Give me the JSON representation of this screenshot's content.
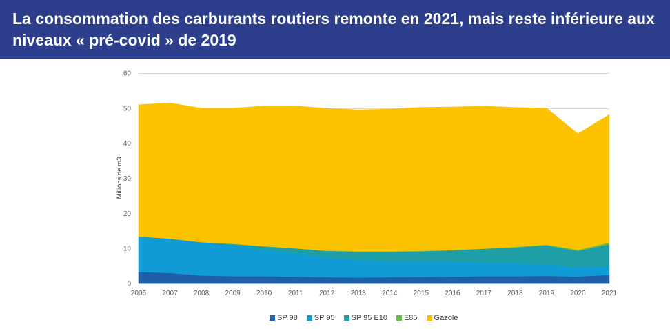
{
  "chart_data": {
    "type": "area",
    "stacked": true,
    "title": "La consommation des carburants routiers remonte en 2021, mais reste inférieure aux niveaux « pré-covid » de 2019",
    "ylabel": "Millions de m3",
    "categories": [
      "2006",
      "2007",
      "2008",
      "2009",
      "2010",
      "2011",
      "2012",
      "2013",
      "2014",
      "2015",
      "2016",
      "2017",
      "2018",
      "2019",
      "2020",
      "2021"
    ],
    "ylim": [
      0,
      60
    ],
    "yticks": [
      0,
      10,
      20,
      30,
      40,
      50,
      60
    ],
    "grid": true,
    "legend_position": "bottom",
    "series": [
      {
        "name": "SP 98",
        "color": "#1f5fa8",
        "values": [
          3.3,
          3.0,
          2.3,
          2.1,
          2.1,
          2.0,
          1.8,
          1.7,
          1.8,
          1.9,
          2.0,
          2.1,
          2.1,
          2.2,
          2.0,
          2.5
        ]
      },
      {
        "name": "SP 95",
        "color": "#109bd7",
        "values": [
          10.1,
          9.8,
          9.5,
          8.9,
          7.5,
          6.6,
          5.6,
          5.0,
          4.5,
          4.3,
          4.1,
          3.9,
          3.7,
          3.3,
          2.6,
          2.5
        ]
      },
      {
        "name": "SP 95 E10",
        "color": "#1e9fa8",
        "values": [
          0,
          0,
          0,
          0.3,
          1.0,
          1.4,
          1.9,
          2.4,
          2.8,
          3.0,
          3.4,
          3.9,
          4.5,
          5.4,
          4.7,
          6.2
        ]
      },
      {
        "name": "E85",
        "color": "#6abd45",
        "values": [
          0,
          0,
          0,
          0,
          0.03,
          0.04,
          0.05,
          0.05,
          0.05,
          0.05,
          0.06,
          0.08,
          0.12,
          0.2,
          0.3,
          0.5
        ]
      },
      {
        "name": "Gazole",
        "color": "#fcc200",
        "values": [
          37.6,
          38.7,
          38.2,
          38.7,
          40.0,
          40.6,
          40.6,
          40.4,
          40.6,
          41.0,
          40.8,
          40.6,
          39.8,
          38.9,
          33.1,
          36.5
        ]
      }
    ]
  }
}
